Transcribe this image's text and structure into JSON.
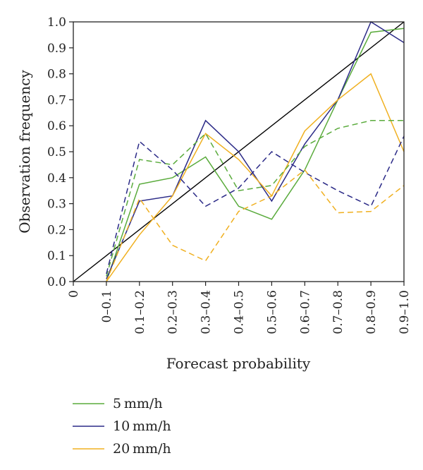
{
  "chart_data": {
    "type": "line",
    "xlabel": "Forecast probability",
    "ylabel": "Observation frequency",
    "x_tick_labels": [
      "0",
      "0–0.1",
      "0.1–0.2",
      "0.2–0.3",
      "0.3–0.4",
      "0.4–0.5",
      "0.5–0.6",
      "0.6–0.7",
      "0.7–0.8",
      "0.8–0.9",
      "0.9–1.0"
    ],
    "y_tick_labels": [
      "0.0",
      "0.1",
      "0.2",
      "0.3",
      "0.4",
      "0.5",
      "0.6",
      "0.7",
      "0.8",
      "0.9",
      "1.0"
    ],
    "xlim": [
      0,
      1
    ],
    "ylim": [
      0,
      1
    ],
    "grid": false,
    "legend_position": "bottom-left",
    "x": [
      0.1,
      0.2,
      0.3,
      0.4,
      0.5,
      0.6,
      0.7,
      0.8,
      0.9,
      1.0
    ],
    "series": [
      {
        "name": "5 mm/h",
        "color": "#5aab3c",
        "dash": false,
        "values": [
          0.0,
          0.375,
          0.4,
          0.48,
          0.29,
          0.24,
          0.43,
          0.7,
          0.96,
          0.975
        ]
      },
      {
        "name": "10 mm/h",
        "color": "#2b2a87",
        "dash": false,
        "values": [
          0.01,
          0.31,
          0.33,
          0.62,
          0.5,
          0.31,
          0.53,
          0.7,
          1.0,
          0.92
        ]
      },
      {
        "name": "20 mm/h",
        "color": "#f0b020",
        "dash": false,
        "values": [
          0.0,
          0.18,
          0.33,
          0.57,
          0.47,
          0.33,
          0.58,
          0.7,
          0.8,
          0.5
        ]
      },
      {
        "color": "#5aab3c",
        "dash": true,
        "values": [
          0.02,
          0.47,
          0.45,
          0.57,
          0.35,
          0.37,
          0.52,
          0.59,
          0.62,
          0.62
        ]
      },
      {
        "color": "#2b2a87",
        "dash": true,
        "values": [
          0.03,
          0.54,
          0.43,
          0.29,
          0.36,
          0.5,
          0.42,
          0.35,
          0.29,
          0.56
        ]
      },
      {
        "color": "#f0b020",
        "dash": true,
        "values": [
          0.0,
          0.32,
          0.14,
          0.08,
          0.27,
          0.33,
          0.43,
          0.265,
          0.27,
          0.37
        ]
      }
    ],
    "reference_line": {
      "color": "#000000",
      "from": [
        0,
        0
      ],
      "to": [
        1,
        1
      ]
    }
  }
}
